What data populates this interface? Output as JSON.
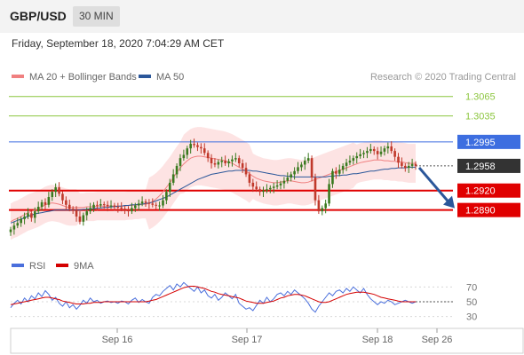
{
  "header": {
    "pair": "GBP/USD",
    "timeframe": "30 MIN",
    "timestamp": "Friday, September 18, 2020 7:04:29 AM CET"
  },
  "credit": "Research © 2020 Trading Central",
  "colors": {
    "resistance_green": "#8cc63f",
    "resistance_blue": "#3d6ee0",
    "support_red": "#e00000",
    "last_price": "#333333",
    "ma20": "#f08080",
    "bollinger_fill": "#fde0e0",
    "ma50": "#2b579a",
    "candle_up": "#3a7a1f",
    "candle_down": "#c0392b",
    "rsi": "#4a6fdc",
    "rsi_ma": "#d40000",
    "arrow": "#2b579a"
  },
  "chart_data": [
    {
      "type": "candlestick",
      "legend": [
        {
          "name": "MA 20 + Bollinger Bands",
          "color": "#f08080"
        },
        {
          "name": "MA 50",
          "color": "#2b579a"
        }
      ],
      "x_ticks": [
        "Sep 16",
        "Sep 17",
        "Sep 18",
        "Sep 26"
      ],
      "ylim": [
        1.2843,
        1.3081
      ],
      "levels": [
        {
          "value": 1.3065,
          "label": "1.3065",
          "kind": "resistance",
          "color": "#8cc63f"
        },
        {
          "value": 1.3035,
          "label": "1.3035",
          "kind": "resistance",
          "color": "#8cc63f"
        },
        {
          "value": 1.2995,
          "label": "1.2995",
          "kind": "pivot",
          "color": "#3d6ee0"
        },
        {
          "value": 1.2958,
          "label": "1.2958",
          "kind": "last",
          "color": "#333333"
        },
        {
          "value": 1.292,
          "label": "1.2920",
          "kind": "support",
          "color": "#e00000"
        },
        {
          "value": 1.289,
          "label": "1.2890",
          "kind": "support",
          "color": "#e00000"
        }
      ],
      "close": [
        1.286,
        1.2866,
        1.287,
        1.2876,
        1.288,
        1.2885,
        1.2878,
        1.2888,
        1.2895,
        1.2902,
        1.2898,
        1.291,
        1.2918,
        1.2925,
        1.2915,
        1.2905,
        1.2898,
        1.2892,
        1.289,
        1.288,
        1.2872,
        1.2882,
        1.2888,
        1.2893,
        1.2898,
        1.2897,
        1.2899,
        1.2898,
        1.2896,
        1.2897,
        1.2895,
        1.2894,
        1.2892,
        1.289,
        1.2888,
        1.2893,
        1.2897,
        1.29,
        1.2903,
        1.2901,
        1.29,
        1.2898,
        1.2897,
        1.2897,
        1.2905,
        1.2918,
        1.2932,
        1.2945,
        1.2958,
        1.297,
        1.2975,
        1.2985,
        1.2992,
        1.299,
        1.2987,
        1.2985,
        1.2978,
        1.297,
        1.2962,
        1.296,
        1.2964,
        1.2966,
        1.2962,
        1.2965,
        1.2968,
        1.297,
        1.2962,
        1.2955,
        1.2945,
        1.2932,
        1.2926,
        1.2922,
        1.2918,
        1.292,
        1.2922,
        1.2924,
        1.2926,
        1.2928,
        1.2931,
        1.2935,
        1.294,
        1.2945,
        1.295,
        1.2956,
        1.296,
        1.2966,
        1.297,
        1.294,
        1.2905,
        1.2888,
        1.2893,
        1.29,
        1.293,
        1.295,
        1.2946,
        1.2952,
        1.2958,
        1.2963,
        1.2966,
        1.297,
        1.2973,
        1.2976,
        1.2978,
        1.2981,
        1.2984,
        1.2981,
        1.2976,
        1.298,
        1.2985,
        1.2988,
        1.2981,
        1.2972,
        1.2963,
        1.2958,
        1.2955,
        1.2958,
        1.2961,
        1.2958
      ],
      "ma20": [
        1.2872,
        1.2875,
        1.2877,
        1.288,
        1.2883,
        1.2886,
        1.2888,
        1.289,
        1.2892,
        1.2895,
        1.2898,
        1.29,
        1.2901,
        1.29,
        1.2899,
        1.2897,
        1.2895,
        1.2894,
        1.2894,
        1.2894,
        1.2894,
        1.2894,
        1.2895,
        1.2895,
        1.2895,
        1.2896,
        1.2896,
        1.2896,
        1.2896,
        1.2896,
        1.2896,
        1.2896,
        1.2896,
        1.2896,
        1.2897,
        1.2897,
        1.2898,
        1.2898,
        1.2899,
        1.2899,
        1.29,
        1.2903,
        1.2907,
        1.2912,
        1.2918,
        1.2925,
        1.2932,
        1.294,
        1.2948,
        1.2955,
        1.2961,
        1.2966,
        1.297,
        1.2972,
        1.2973,
        1.2973,
        1.2972,
        1.2971,
        1.297,
        1.2969,
        1.2968,
        1.2967,
        1.2966,
        1.2964,
        1.2962,
        1.2959,
        1.2956,
        1.2953,
        1.295,
        1.2946,
        1.2942,
        1.2939,
        1.2937,
        1.2935,
        1.2934,
        1.2933,
        1.2932,
        1.2932,
        1.2933,
        1.2934,
        1.2935,
        1.2935,
        1.2934,
        1.2933,
        1.2932,
        1.2932,
        1.2933,
        1.2935,
        1.2937,
        1.2939,
        1.2941,
        1.2943,
        1.2945,
        1.2947,
        1.2949,
        1.2951,
        1.2953,
        1.2955,
        1.2957,
        1.2959,
        1.2961,
        1.2963,
        1.2964,
        1.2965,
        1.2966,
        1.2967,
        1.2967,
        1.2967,
        1.2966,
        1.2966,
        1.2965,
        1.2965,
        1.2964,
        1.2964,
        1.2963,
        1.2962,
        1.2962,
        1.2962
      ],
      "ma50": [
        1.287,
        1.2872,
        1.2874,
        1.2876,
        1.2878,
        1.288,
        1.2882,
        1.2884,
        1.2885,
        1.2886,
        1.2887,
        1.2888,
        1.2889,
        1.289,
        1.289,
        1.289,
        1.289,
        1.289,
        1.289,
        1.289,
        1.289,
        1.2891,
        1.2891,
        1.2892,
        1.2892,
        1.2893,
        1.2893,
        1.2894,
        1.2894,
        1.2895,
        1.2895,
        1.2896,
        1.2896,
        1.2897,
        1.2897,
        1.2898,
        1.2898,
        1.2899,
        1.2899,
        1.29,
        1.2901,
        1.2902,
        1.2904,
        1.2906,
        1.2908,
        1.291,
        1.2913,
        1.2916,
        1.2919,
        1.2922,
        1.2925,
        1.2928,
        1.2931,
        1.2934,
        1.2937,
        1.2939,
        1.2941,
        1.2943,
        1.2945,
        1.2946,
        1.2947,
        1.2948,
        1.2949,
        1.295,
        1.295,
        1.2951,
        1.2951,
        1.2951,
        1.2951,
        1.2951,
        1.295,
        1.295,
        1.2949,
        1.2948,
        1.2947,
        1.2946,
        1.2945,
        1.2944,
        1.2943,
        1.2943,
        1.2942,
        1.2942,
        1.2941,
        1.2941,
        1.2941,
        1.2941,
        1.2941,
        1.2941,
        1.2941,
        1.2941,
        1.2941,
        1.2941,
        1.2942,
        1.2942,
        1.2943,
        1.2943,
        1.2944,
        1.2944,
        1.2945,
        1.2946,
        1.2946,
        1.2947,
        1.2948,
        1.2949,
        1.295,
        1.295,
        1.2951,
        1.2952,
        1.2953,
        1.2953,
        1.2954,
        1.2954,
        1.2955,
        1.2955,
        1.2955,
        1.2956,
        1.2956,
        1.2956
      ],
      "bb_width": [
        0.0028,
        0.0028,
        0.0028,
        0.0028,
        0.0028,
        0.0028,
        0.0028,
        0.0028,
        0.0028,
        0.0028,
        0.0028,
        0.0028,
        0.0028,
        0.0028,
        0.0028,
        0.0028,
        0.0028,
        0.0028,
        0.0028,
        0.0028,
        0.0022,
        0.0022,
        0.0022,
        0.0022,
        0.0022,
        0.0022,
        0.0022,
        0.0022,
        0.0022,
        0.0022,
        0.0022,
        0.0022,
        0.0022,
        0.0022,
        0.0022,
        0.0022,
        0.0022,
        0.0022,
        0.0022,
        0.0022,
        0.004,
        0.004,
        0.004,
        0.004,
        0.004,
        0.004,
        0.004,
        0.004,
        0.004,
        0.004,
        0.0045,
        0.0045,
        0.0045,
        0.0045,
        0.0045,
        0.0045,
        0.0045,
        0.0045,
        0.0045,
        0.0045,
        0.0045,
        0.0045,
        0.0045,
        0.0045,
        0.0045,
        0.0045,
        0.0045,
        0.0045,
        0.0045,
        0.0045,
        0.0035,
        0.0035,
        0.0035,
        0.0035,
        0.0035,
        0.0035,
        0.0035,
        0.0035,
        0.0035,
        0.0035,
        0.0035,
        0.0035,
        0.0035,
        0.0035,
        0.0035,
        0.0035,
        0.0035,
        0.0035,
        0.0035,
        0.0035,
        0.0035,
        0.0035,
        0.0035,
        0.0035,
        0.0035,
        0.0035,
        0.0035,
        0.0035,
        0.0035,
        0.0035,
        0.003,
        0.003,
        0.003,
        0.003,
        0.003,
        0.003,
        0.003,
        0.003,
        0.003,
        0.003,
        0.003,
        0.003,
        0.003,
        0.003,
        0.003,
        0.003,
        0.003,
        0.003
      ],
      "forecast": {
        "from": 1.2958,
        "to": 1.289
      }
    },
    {
      "type": "line",
      "legend": [
        {
          "name": "RSI",
          "color": "#4a6fdc"
        },
        {
          "name": "9MA",
          "color": "#d40000"
        }
      ],
      "yticks": [
        70,
        50,
        30
      ],
      "ylim": [
        20,
        80
      ],
      "rsi": [
        42,
        48,
        52,
        47,
        55,
        50,
        58,
        54,
        62,
        57,
        65,
        60,
        52,
        56,
        48,
        44,
        50,
        42,
        46,
        40,
        45,
        52,
        48,
        55,
        50,
        52,
        48,
        50,
        51,
        49,
        50,
        48,
        51,
        50,
        47,
        52,
        55,
        49,
        53,
        50,
        48,
        56,
        60,
        58,
        64,
        68,
        72,
        66,
        74,
        70,
        76,
        72,
        68,
        64,
        70,
        62,
        66,
        58,
        55,
        60,
        52,
        56,
        62,
        58,
        54,
        60,
        48,
        44,
        40,
        42,
        38,
        45,
        52,
        48,
        56,
        50,
        54,
        60,
        62,
        58,
        64,
        60,
        66,
        62,
        58,
        54,
        48,
        40,
        36,
        44,
        50,
        56,
        62,
        58,
        64,
        66,
        62,
        68,
        64,
        70,
        66,
        62,
        68,
        60,
        54,
        50,
        46,
        50,
        48,
        52,
        50,
        46,
        48,
        50,
        52,
        50,
        48,
        50
      ],
      "ma9": [
        46,
        47,
        48,
        49,
        50,
        51,
        52,
        53,
        54,
        55,
        56,
        56,
        55,
        54,
        53,
        51,
        50,
        49,
        48,
        47,
        47,
        47,
        48,
        48,
        49,
        49,
        49,
        50,
        50,
        50,
        50,
        50,
        50,
        50,
        50,
        50,
        50,
        50,
        50,
        50,
        51,
        52,
        53,
        55,
        57,
        59,
        61,
        63,
        65,
        67,
        69,
        70,
        71,
        71,
        70,
        69,
        68,
        66,
        64,
        63,
        61,
        60,
        59,
        58,
        57,
        56,
        55,
        53,
        51,
        50,
        49,
        48,
        48,
        48,
        49,
        50,
        51,
        53,
        55,
        56,
        58,
        59,
        60,
        60,
        59,
        58,
        56,
        54,
        52,
        50,
        49,
        49,
        50,
        52,
        54,
        56,
        58,
        60,
        61,
        62,
        63,
        63,
        63,
        62,
        61,
        60,
        58,
        56,
        55,
        54,
        53,
        52,
        51,
        50,
        50,
        50,
        50,
        50
      ]
    }
  ]
}
